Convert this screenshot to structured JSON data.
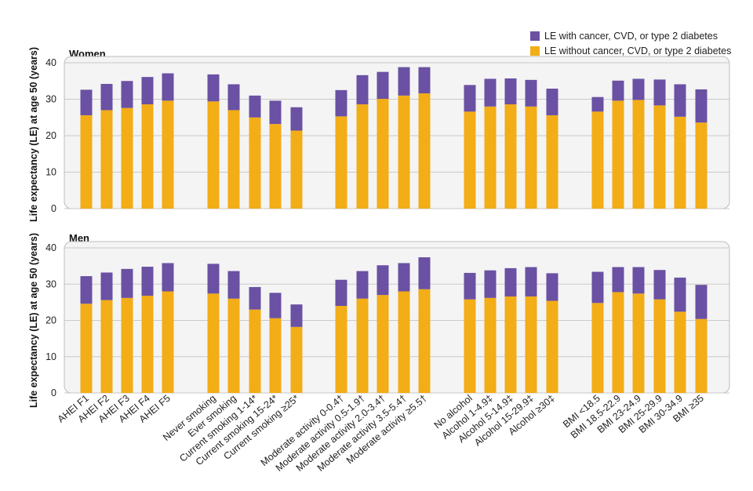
{
  "colors": {
    "with_disease": "#6a51a3",
    "without_disease": "#f2ad17",
    "panel_bg": "#f4f4f4",
    "grid": "#c9c9c9",
    "panel_border": "#bdbdbd"
  },
  "legend": {
    "with_label": "LE with cancer, CVD, or type 2 diabetes",
    "without_label": "LE without cancer, CVD, or type 2 diabetes"
  },
  "chart_data": [
    {
      "type": "bar",
      "stacked": true,
      "title": "Women",
      "ylabel": "Life expectancy (LE) at age 50 (years)",
      "ylim": [
        0,
        40
      ],
      "yticks": [
        "0",
        "10",
        "20",
        "30",
        "40"
      ],
      "groups": [
        {
          "categories": [
            "AHEI F1",
            "AHEI F2",
            "AHEI F3",
            "AHEI F4",
            "AHEI F5"
          ]
        },
        {
          "categories": [
            "Never smoking",
            "Ever smoking",
            "Current smoking 1-14*",
            "Current smoking 15-24*",
            "Current smoking ≥25*"
          ]
        },
        {
          "categories": [
            "Moderate activity 0-0.4†",
            "Moderate activity 0.5-1.9†",
            "Moderate activity 2.0-3.4†",
            "Moderate activity 3.5-5.4†",
            "Moderate activity ≥5.5†"
          ]
        },
        {
          "categories": [
            "No alcohol",
            "Alcohol 1-4.9‡",
            "Alcohol 5-14.9‡",
            "Alcohol 15-29.9‡",
            "Alcohol ≥30‡"
          ]
        },
        {
          "categories": [
            "BMI <18.5",
            "BMI 18.5-22.9",
            "BMI 23-24.9",
            "BMI 25-29.9",
            "BMI 30-34.9",
            "BMI ≥35"
          ]
        }
      ],
      "series": [
        {
          "name": "LE without cancer, CVD, or type 2 diabetes",
          "values": [
            25.6,
            27.0,
            27.6,
            28.6,
            29.6,
            29.4,
            27.0,
            25.0,
            23.2,
            21.4,
            25.3,
            28.6,
            30.1,
            31.0,
            31.6,
            26.6,
            28.0,
            28.6,
            28.0,
            25.6,
            26.6,
            29.6,
            29.8,
            28.3,
            25.2,
            23.6
          ]
        },
        {
          "name": "LE with cancer, CVD, or type 2 diabetes",
          "values": [
            7.0,
            7.2,
            7.4,
            7.5,
            7.5,
            7.4,
            7.1,
            6.0,
            6.4,
            6.4,
            7.2,
            8.0,
            7.4,
            7.8,
            7.2,
            7.3,
            7.6,
            7.1,
            7.3,
            7.3,
            4.0,
            5.5,
            5.8,
            7.1,
            8.9,
            9.1
          ]
        }
      ]
    },
    {
      "type": "bar",
      "stacked": true,
      "title": "Men",
      "ylabel": "Life expectancy (LE) at age 50 (years)",
      "ylim": [
        0,
        40
      ],
      "yticks": [
        "0",
        "10",
        "20",
        "30",
        "40"
      ],
      "groups": [
        {
          "categories": [
            "AHEI F1",
            "AHEI F2",
            "AHEI F3",
            "AHEI F4",
            "AHEI F5"
          ]
        },
        {
          "categories": [
            "Never smoking",
            "Ever smoking",
            "Current smoking 1-14*",
            "Current smoking 15-24*",
            "Current smoking ≥25*"
          ]
        },
        {
          "categories": [
            "Moderate activity 0-0.4†",
            "Moderate activity 0.5-1.9†",
            "Moderate activity 2.0-3.4†",
            "Moderate activity 3.5-5.4†",
            "Moderate activity ≥5.5†"
          ]
        },
        {
          "categories": [
            "No alcohol",
            "Alcohol 1-4.9‡",
            "Alcohol 5-14.9‡",
            "Alcohol 15-29.9‡",
            "Alcohol ≥30‡"
          ]
        },
        {
          "categories": [
            "BMI <18.5",
            "BMI 18.5-22.9",
            "BMI 23-24.9",
            "BMI 25-29.9",
            "BMI 30-34.9",
            "BMI ≥35"
          ]
        }
      ],
      "series": [
        {
          "name": "LE without cancer, CVD, or type 2 diabetes",
          "values": [
            24.6,
            25.6,
            26.2,
            26.8,
            28.0,
            27.4,
            26.0,
            23.0,
            20.6,
            18.2,
            24.0,
            26.0,
            27.0,
            28.0,
            28.6,
            25.8,
            26.2,
            26.6,
            26.6,
            25.4,
            24.8,
            27.8,
            27.4,
            25.8,
            22.4,
            20.4
          ]
        },
        {
          "name": "LE with cancer, CVD, or type 2 diabetes",
          "values": [
            7.6,
            7.6,
            8.0,
            8.0,
            7.8,
            8.2,
            7.6,
            6.2,
            7.0,
            6.2,
            7.2,
            7.6,
            8.2,
            7.8,
            8.8,
            7.3,
            7.6,
            7.8,
            8.1,
            7.6,
            8.6,
            6.9,
            7.3,
            8.1,
            9.4,
            9.4
          ]
        }
      ],
      "xtick_labels": [
        "AHEI F1",
        "AHEI F2",
        "AHEI F3",
        "AHEI F4",
        "AHEI F5",
        "Never smoking",
        "Ever smoking",
        "Current smoking 1-14*",
        "Current smoking 15-24*",
        "Current smoking ≥25*",
        "Moderate activity 0-0.4†",
        "Moderate activity 0.5-1.9†",
        "Moderate activity 2.0-3.4†",
        "Moderate activity 3.5-5.4†",
        "Moderate activity ≥5.5†",
        "No alcohol",
        "Alcohol 1-4.9‡",
        "Alcohol 5-14.9‡",
        "Alcohol 15-29.9‡",
        "Alcohol ≥30‡",
        "BMI <18.5",
        "BMI 18.5-22.9",
        "BMI 23-24.9",
        "BMI 25-29.9",
        "BMI 30-34.9",
        "BMI ≥35"
      ]
    }
  ]
}
